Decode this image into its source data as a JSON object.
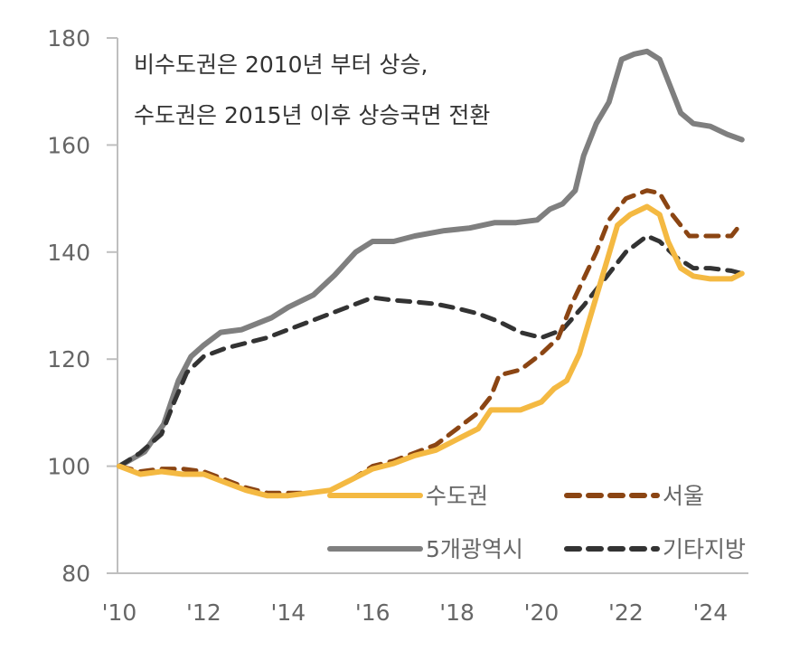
{
  "chart_data": {
    "type": "line",
    "title": "",
    "xlabel": "",
    "ylabel": "",
    "ylim": [
      80,
      180
    ],
    "xlim": [
      2010,
      2024.75
    ],
    "grid": false,
    "legend_placement": "bottom-right",
    "y_ticks": [
      "180",
      "160",
      "140",
      "120",
      "100",
      "80"
    ],
    "y_tick_values": [
      180,
      160,
      140,
      120,
      100,
      80
    ],
    "x_ticks": [
      "'10",
      "'12",
      "'14",
      "'16",
      "'18",
      "'20",
      "'22",
      "'24"
    ],
    "x_tick_values": [
      2010,
      2012,
      2014,
      2016,
      2018,
      2020,
      2022,
      2024
    ],
    "annotation": [
      "비수도권은 2010년 부터 상승,",
      "수도권은 2015년 이후 상승국면 전환"
    ],
    "series": [
      {
        "name": "5개광역시",
        "color": "#7f7f7f",
        "style": "solid",
        "x": [
          2010,
          2010.6,
          2011.05,
          2011.4,
          2011.7,
          2012,
          2012.4,
          2012.9,
          2013.6,
          2014,
          2014.6,
          2015.1,
          2015.6,
          2016,
          2016.5,
          2017,
          2017.7,
          2018.3,
          2018.9,
          2019.4,
          2019.9,
          2020.2,
          2020.5,
          2020.8,
          2021,
          2021.3,
          2021.6,
          2021.9,
          2022.2,
          2022.5,
          2022.8,
          2023.1,
          2023.3,
          2023.6,
          2024,
          2024.4,
          2024.75
        ],
        "y": [
          100,
          102.7,
          107.8,
          116,
          120.5,
          122.6,
          125,
          125.5,
          127.7,
          129.7,
          132,
          135.7,
          140,
          142,
          142,
          143,
          144,
          144.5,
          145.5,
          145.5,
          146,
          148,
          149,
          151.5,
          158,
          164,
          168,
          176,
          177,
          177.5,
          176,
          170,
          166,
          164,
          163.5,
          162,
          161
        ]
      },
      {
        "name": "서울",
        "color": "#8b4513",
        "style": "dashed",
        "x": [
          2010,
          2010.5,
          2011,
          2011.5,
          2012,
          2012.5,
          2013,
          2013.5,
          2014,
          2014.5,
          2015,
          2015.5,
          2016,
          2016.5,
          2017,
          2017.5,
          2018,
          2018.5,
          2018.8,
          2019,
          2019.5,
          2020,
          2020.4,
          2020.7,
          2021,
          2021.3,
          2021.6,
          2022,
          2022.5,
          2022.8,
          2023.1,
          2023.5,
          2024,
          2024.5,
          2024.75
        ],
        "y": [
          100,
          99,
          99.5,
          99.5,
          99,
          97.5,
          96,
          95,
          95,
          95,
          95.5,
          97.5,
          100,
          101,
          102.5,
          104,
          107,
          110,
          113,
          117,
          118,
          121,
          124,
          130,
          135,
          140,
          146,
          150,
          151.5,
          151,
          147,
          143,
          143,
          143,
          145.5
        ]
      },
      {
        "name": "수도권",
        "color": "#f4b942",
        "style": "solid",
        "x": [
          2010,
          2010.5,
          2011,
          2011.5,
          2012,
          2012.5,
          2013,
          2013.5,
          2014,
          2014.5,
          2015,
          2015.5,
          2016,
          2016.5,
          2017,
          2017.5,
          2018,
          2018.5,
          2018.8,
          2019.5,
          2020,
          2020.3,
          2020.6,
          2020.9,
          2021.2,
          2021.5,
          2021.8,
          2022.1,
          2022.5,
          2022.8,
          2023,
          2023.3,
          2023.6,
          2024,
          2024.5,
          2024.75
        ],
        "y": [
          100,
          98.5,
          99,
          98.5,
          98.5,
          97,
          95.5,
          94.5,
          94.5,
          95,
          95.5,
          97.5,
          99.5,
          100.5,
          102,
          103,
          105,
          107,
          110.5,
          110.5,
          112,
          114.5,
          116,
          121,
          129,
          137,
          145,
          147,
          148.5,
          147,
          142,
          137,
          135.5,
          135,
          135,
          136
        ]
      },
      {
        "name": "기타지방",
        "color": "#333333",
        "style": "dashed",
        "x": [
          2010,
          2010.5,
          2011,
          2011.3,
          2011.6,
          2012,
          2012.5,
          2013,
          2013.5,
          2014,
          2014.5,
          2015,
          2015.5,
          2016,
          2016.5,
          2017,
          2017.5,
          2018,
          2018.5,
          2019,
          2019.5,
          2020,
          2020.5,
          2021,
          2021.5,
          2022,
          2022.5,
          2022.8,
          2023.2,
          2023.6,
          2024,
          2024.5,
          2024.75
        ],
        "y": [
          100,
          102.5,
          106,
          112,
          117.5,
          120.5,
          122,
          123,
          124,
          125.5,
          127,
          128.5,
          130,
          131.5,
          131,
          130.7,
          130.3,
          129.5,
          128.5,
          127,
          125,
          124,
          125.5,
          130,
          135,
          140,
          143,
          142,
          139,
          137,
          137,
          136.5,
          136
        ]
      }
    ]
  }
}
